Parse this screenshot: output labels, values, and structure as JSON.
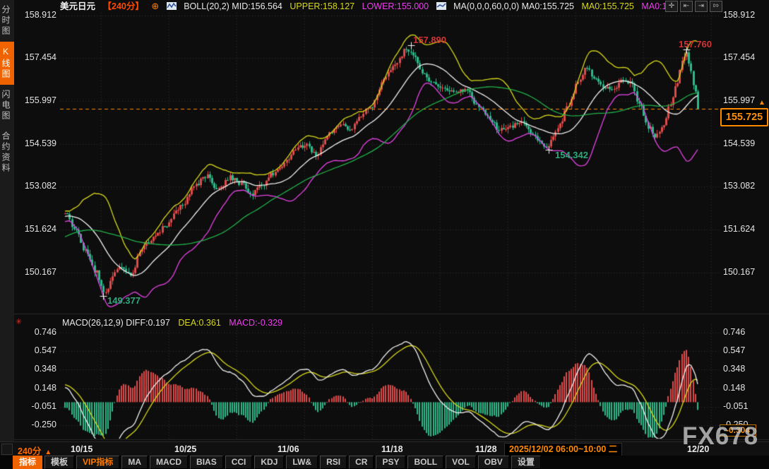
{
  "header": {
    "symbol": "美元日元",
    "period": "【240分】",
    "boll_label": "BOLL(20,2) MID:156.564",
    "boll_upper": "UPPER:158.127",
    "boll_lower": "LOWER:155.000",
    "ma_label": "MA(0,0,0,60,0,0) MA0:155.725",
    "ma0_yellow": "MA0:155.725",
    "ma0_magenta": "MA0:1"
  },
  "sidebar": {
    "items": [
      {
        "label": "分时图",
        "active": false
      },
      {
        "label": "K线图",
        "active": true
      },
      {
        "label": "闪电图",
        "active": false
      },
      {
        "label": "合约资料",
        "active": false
      }
    ]
  },
  "axis": {
    "main_left": [
      "158.912",
      "157.454",
      "155.997",
      "154.539",
      "153.082",
      "151.624",
      "150.167"
    ],
    "main_right": [
      "158.912",
      "157.454",
      "155.997",
      "154.539",
      "153.082",
      "151.624",
      "150.167"
    ],
    "macd": [
      "0.746",
      "0.547",
      "0.348",
      "0.148",
      "-0.051",
      "-0.250"
    ]
  },
  "annotations": {
    "high1": "157.890",
    "high2": "157.760",
    "low1": "149.377",
    "low2": "154.342",
    "price_tag": "155.725",
    "macd_tag": "-0.304"
  },
  "macd_header": {
    "label": "MACD(26,12,9) DIFF:0.197",
    "dea": "DEA:0.361",
    "macd": "MACD:-0.329"
  },
  "status_bar": {
    "period": "240分",
    "dates": [
      "10/15",
      "10/25",
      "11/06",
      "11/18",
      "11/28",
      "12/20"
    ],
    "tooltip": "2025/12/02 06:00~10:00 二"
  },
  "toolbar": {
    "items": [
      {
        "label": "指标",
        "name": "indicators",
        "style": "active"
      },
      {
        "label": "模板",
        "name": "templates",
        "style": ""
      },
      {
        "label": "VIP指标",
        "name": "vip-indicators",
        "style": "vip"
      },
      {
        "label": "MA",
        "name": "ma",
        "style": ""
      },
      {
        "label": "MACD",
        "name": "macd",
        "style": ""
      },
      {
        "label": "BIAS",
        "name": "bias",
        "style": ""
      },
      {
        "label": "CCI",
        "name": "cci",
        "style": ""
      },
      {
        "label": "KDJ",
        "name": "kdj",
        "style": ""
      },
      {
        "label": "LW&",
        "name": "lw",
        "style": ""
      },
      {
        "label": "RSI",
        "name": "rsi",
        "style": ""
      },
      {
        "label": "CR",
        "name": "cr",
        "style": ""
      },
      {
        "label": "PSY",
        "name": "psy",
        "style": ""
      },
      {
        "label": "BOLL",
        "name": "boll",
        "style": ""
      },
      {
        "label": "VOL",
        "name": "vol",
        "style": ""
      },
      {
        "label": "OBV",
        "name": "obv",
        "style": ""
      },
      {
        "label": "设置",
        "name": "settings",
        "style": ""
      }
    ]
  },
  "watermark": "FX678",
  "colors": {
    "background": "#0d0d0d",
    "accent_orange": "#ef6400",
    "candle_up": "#de4b4b",
    "candle_down": "#2cb98b",
    "boll_mid": "#f2f2f2",
    "boll_upper": "#d9d919",
    "boll_lower": "#e743e7",
    "ma60": "#21b24a",
    "dashed_line": "#ff8a00",
    "macd_diff": "#f2f2f2",
    "macd_dea": "#d9d919",
    "grid": "#2f2f2f",
    "annotation_red": "#d23434",
    "annotation_green": "#2ea87c"
  },
  "chart_data": {
    "type": "candlestick",
    "symbol": "美元日元",
    "period": "240分",
    "x_axis_dates": [
      "10/15",
      "10/25",
      "11/06",
      "11/18",
      "11/28",
      "12/20"
    ],
    "price_axis_ticks": [
      158.912,
      157.454,
      155.997,
      154.539,
      153.082,
      151.624,
      150.167
    ],
    "macd_axis_ticks": [
      0.746,
      0.547,
      0.348,
      0.148,
      -0.051,
      -0.25
    ],
    "last_price": 155.725,
    "extremes": {
      "high_mid_nov": 157.89,
      "high_dec": 157.76,
      "low_oct": 149.377,
      "low_late_nov": 154.342
    },
    "indicators": {
      "boll": {
        "period": 20,
        "dev": 2,
        "mid": 156.564,
        "upper": 158.127,
        "lower": 155.0
      },
      "ma": {
        "period": 60,
        "value": 155.725
      },
      "macd": {
        "params": [
          26,
          12,
          9
        ],
        "diff": 0.197,
        "dea": 0.361,
        "hist": -0.329
      }
    },
    "price_keyframes": [
      [
        92,
        152.2
      ],
      [
        105,
        151.7
      ],
      [
        120,
        150.9
      ],
      [
        135,
        150.2
      ],
      [
        148,
        149.45
      ],
      [
        160,
        150.1
      ],
      [
        172,
        150.4
      ],
      [
        185,
        150.05
      ],
      [
        200,
        151.0
      ],
      [
        215,
        151.3
      ],
      [
        232,
        151.7
      ],
      [
        255,
        152.4
      ],
      [
        275,
        153.1
      ],
      [
        292,
        153.45
      ],
      [
        308,
        153.0
      ],
      [
        325,
        153.4
      ],
      [
        342,
        153.2
      ],
      [
        355,
        152.8
      ],
      [
        370,
        153.1
      ],
      [
        385,
        153.5
      ],
      [
        400,
        153.8
      ],
      [
        418,
        154.35
      ],
      [
        432,
        154.5
      ],
      [
        448,
        154.2
      ],
      [
        465,
        154.9
      ],
      [
        482,
        155.2
      ],
      [
        495,
        155.0
      ],
      [
        510,
        155.5
      ],
      [
        525,
        155.8
      ],
      [
        545,
        156.8
      ],
      [
        560,
        157.3
      ],
      [
        575,
        157.75
      ],
      [
        585,
        157.6
      ],
      [
        598,
        157.0
      ],
      [
        612,
        156.6
      ],
      [
        628,
        156.45
      ],
      [
        645,
        156.3
      ],
      [
        660,
        156.35
      ],
      [
        675,
        155.9
      ],
      [
        692,
        155.4
      ],
      [
        708,
        155.0
      ],
      [
        722,
        155.1
      ],
      [
        738,
        155.3
      ],
      [
        755,
        154.8
      ],
      [
        775,
        154.45
      ],
      [
        790,
        155.1
      ],
      [
        805,
        155.9
      ],
      [
        818,
        156.6
      ],
      [
        830,
        157.1
      ],
      [
        842,
        156.8
      ],
      [
        855,
        156.5
      ],
      [
        868,
        156.4
      ],
      [
        880,
        156.7
      ],
      [
        893,
        156.6
      ],
      [
        905,
        155.9
      ],
      [
        918,
        155.1
      ],
      [
        928,
        154.8
      ],
      [
        938,
        155.1
      ],
      [
        948,
        155.8
      ],
      [
        958,
        156.6
      ],
      [
        966,
        157.3
      ],
      [
        972,
        157.6
      ],
      [
        978,
        157.1
      ],
      [
        984,
        156.3
      ],
      [
        990,
        155.75
      ]
    ]
  }
}
